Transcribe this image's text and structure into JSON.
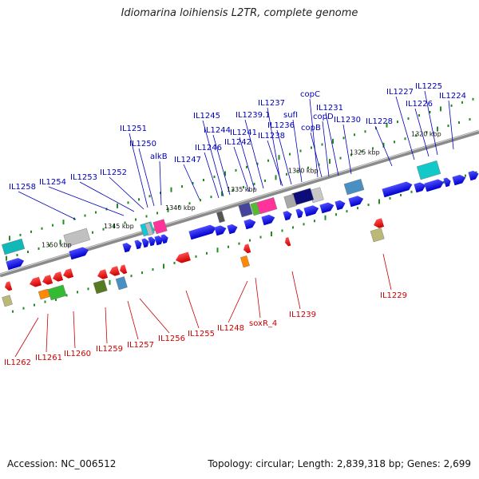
{
  "title": "Idiomarina loihiensis L2TR, complete genome",
  "accession": "Accession: NC_006512",
  "topology": "Topology: circular; Length: 2,839,318 bp; Genes: 2,699",
  "kbp_labels": [
    "1320 kbp",
    "1325 kbp",
    "1330 kbp",
    "1335 kbp",
    "1340 kbp",
    "1345 kbp",
    "1350 kbp"
  ],
  "forward_gene_labels": [
    "IL1258",
    "IL1254",
    "IL1253",
    "IL1252",
    "IL1251",
    "IL1250",
    "alkB",
    "IL1247",
    "IL1246",
    "IL1245",
    "IL1244",
    "IL1242",
    "IL1241",
    "IL1239.1",
    "IL1238",
    "IL1237",
    "IL1236",
    "sufI",
    "copC",
    "copB",
    "copD",
    "IL1231",
    "IL1230",
    "IL1228",
    "IL1227",
    "IL1226",
    "IL1225",
    "IL1224"
  ],
  "reverse_gene_labels": [
    "IL1262",
    "IL1261",
    "IL1260",
    "IL1259",
    "IL1257",
    "IL1256",
    "IL1255",
    "IL1248",
    "soxR_4",
    "IL1239",
    "IL1229"
  ],
  "colors": {
    "forward_label": "#0000bb",
    "reverse_label": "#cc0000",
    "forward_gene": "#0000ee",
    "reverse_gene": "#ee0000",
    "backbone": "#8a8a8a",
    "tick": "#228b22"
  }
}
